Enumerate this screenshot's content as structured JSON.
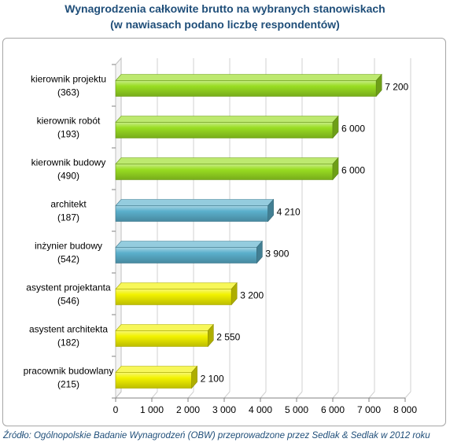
{
  "chart_data": {
    "type": "bar",
    "orientation": "horizontal",
    "title": "Wynagrodzenia całkowite brutto na wybranych stanowiskach",
    "subtitle": "(w nawiasach podano liczbę respondentów)",
    "categories": [
      {
        "label": "kierownik projektu",
        "count": "(363)"
      },
      {
        "label": "kierownik robót",
        "count": "(193)"
      },
      {
        "label": "kierownik budowy",
        "count": "(490)"
      },
      {
        "label": "architekt",
        "count": "(187)"
      },
      {
        "label": "inżynier budowy",
        "count": "(542)"
      },
      {
        "label": "asystent projektanta",
        "count": "(546)"
      },
      {
        "label": "asystent architekta",
        "count": "(182)"
      },
      {
        "label": "pracownik budowlany",
        "count": "(215)"
      }
    ],
    "values": [
      7200,
      6000,
      6000,
      4210,
      3900,
      3200,
      2550,
      2100
    ],
    "value_labels": [
      "7 200",
      "6 000",
      "6 000",
      "4 210",
      "3 900",
      "3 200",
      "2 550",
      "2 100"
    ],
    "bar_colors": [
      "#99dd22",
      "#99dd22",
      "#99dd22",
      "#5bb0cc",
      "#5bb0cc",
      "#f2f200",
      "#f2f200",
      "#f2f200"
    ],
    "xlim": [
      0,
      8000
    ],
    "xticks": [
      0,
      1000,
      2000,
      3000,
      4000,
      5000,
      6000,
      7000,
      8000
    ],
    "xtick_labels": [
      "0",
      "1 000",
      "2 000",
      "3 000",
      "4 000",
      "5 000",
      "6 000",
      "7 000",
      "8 000"
    ],
    "grid": true,
    "legend": "none"
  },
  "source": "Źródło: Ogólnopolskie Badanie Wynagrodzeń (OBW) przeprowadzone przez Sedlak & Sedlak w 2012 roku"
}
